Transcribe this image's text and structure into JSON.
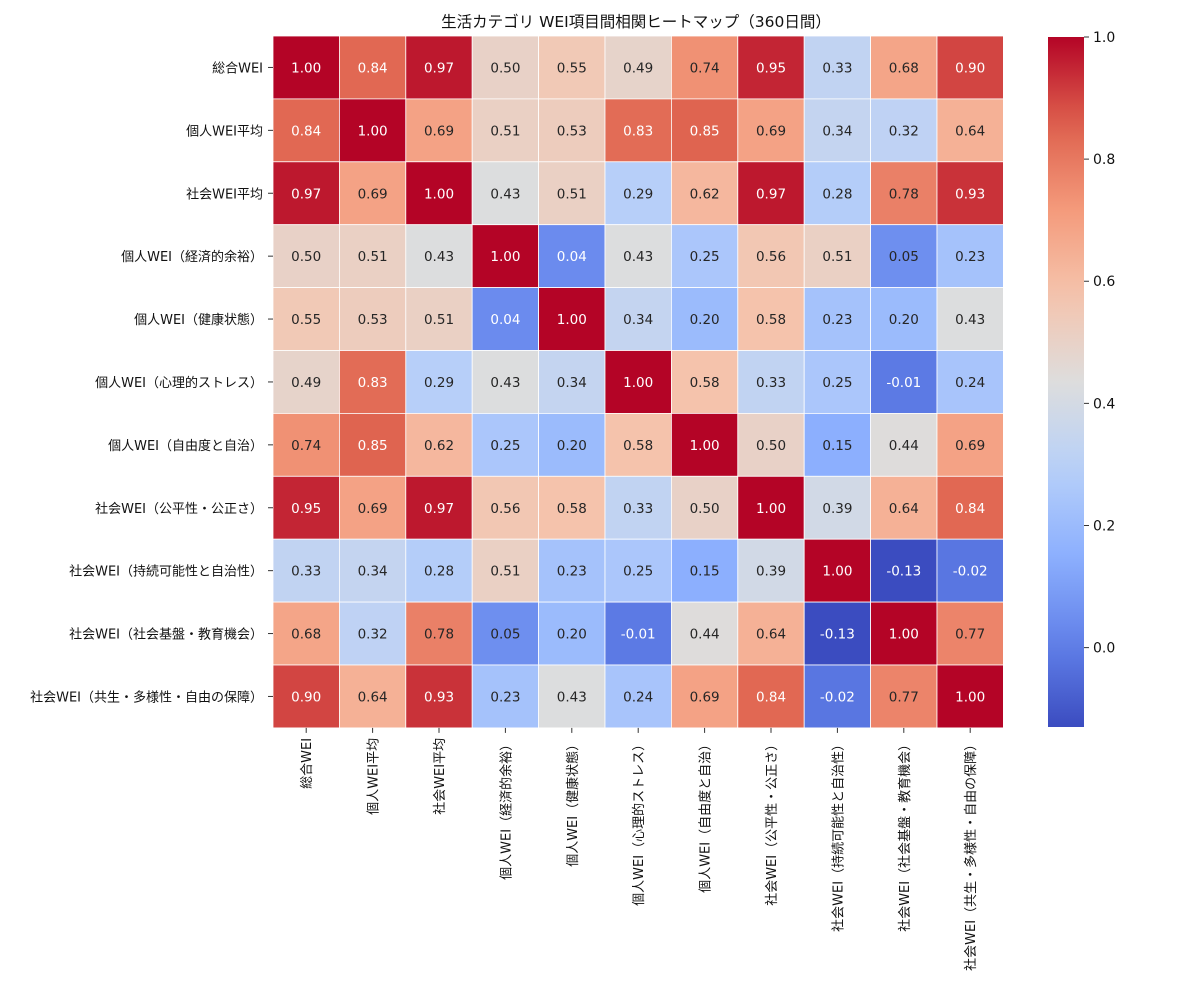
{
  "chart_data": {
    "type": "heatmap",
    "title": "生活カテゴリ WEI項目間相関ヒートマップ（360日間）",
    "xlabel": "",
    "ylabel": "",
    "labels": [
      "総合WEI",
      "個人WEI平均",
      "社会WEI平均",
      "個人WEI（経済的余裕）",
      "個人WEI（健康状態）",
      "個人WEI（心理的ストレス）",
      "個人WEI（自由度と自治）",
      "社会WEI（公平性・公正さ）",
      "社会WEI（持続可能性と自治性）",
      "社会WEI（社会基盤・教育機会）",
      "社会WEI（共生・多様性・自由の保障）"
    ],
    "matrix": [
      [
        1.0,
        0.84,
        0.97,
        0.5,
        0.55,
        0.49,
        0.74,
        0.95,
        0.33,
        0.68,
        0.9
      ],
      [
        0.84,
        1.0,
        0.69,
        0.51,
        0.53,
        0.83,
        0.85,
        0.69,
        0.34,
        0.32,
        0.64
      ],
      [
        0.97,
        0.69,
        1.0,
        0.43,
        0.51,
        0.29,
        0.62,
        0.97,
        0.28,
        0.78,
        0.93
      ],
      [
        0.5,
        0.51,
        0.43,
        1.0,
        0.04,
        0.43,
        0.25,
        0.56,
        0.51,
        0.05,
        0.23
      ],
      [
        0.55,
        0.53,
        0.51,
        0.04,
        1.0,
        0.34,
        0.2,
        0.58,
        0.23,
        0.2,
        0.43
      ],
      [
        0.49,
        0.83,
        0.29,
        0.43,
        0.34,
        1.0,
        0.58,
        0.33,
        0.25,
        -0.01,
        0.24
      ],
      [
        0.74,
        0.85,
        0.62,
        0.25,
        0.2,
        0.58,
        1.0,
        0.5,
        0.15,
        0.44,
        0.69
      ],
      [
        0.95,
        0.69,
        0.97,
        0.56,
        0.58,
        0.33,
        0.5,
        1.0,
        0.39,
        0.64,
        0.84
      ],
      [
        0.33,
        0.34,
        0.28,
        0.51,
        0.23,
        0.25,
        0.15,
        0.39,
        1.0,
        -0.13,
        -0.02
      ],
      [
        0.68,
        0.32,
        0.78,
        0.05,
        0.2,
        -0.01,
        0.44,
        0.64,
        -0.13,
        1.0,
        0.77
      ],
      [
        0.9,
        0.64,
        0.93,
        0.23,
        0.43,
        0.24,
        0.69,
        0.84,
        -0.02,
        0.77,
        1.0
      ]
    ],
    "colormap": "coolwarm",
    "vmin": -0.13,
    "vmax": 1.0,
    "colorbar_ticks": [
      "0.0",
      "0.2",
      "0.4",
      "0.6",
      "0.8",
      "1.0"
    ],
    "annotation_format": "0.00"
  }
}
